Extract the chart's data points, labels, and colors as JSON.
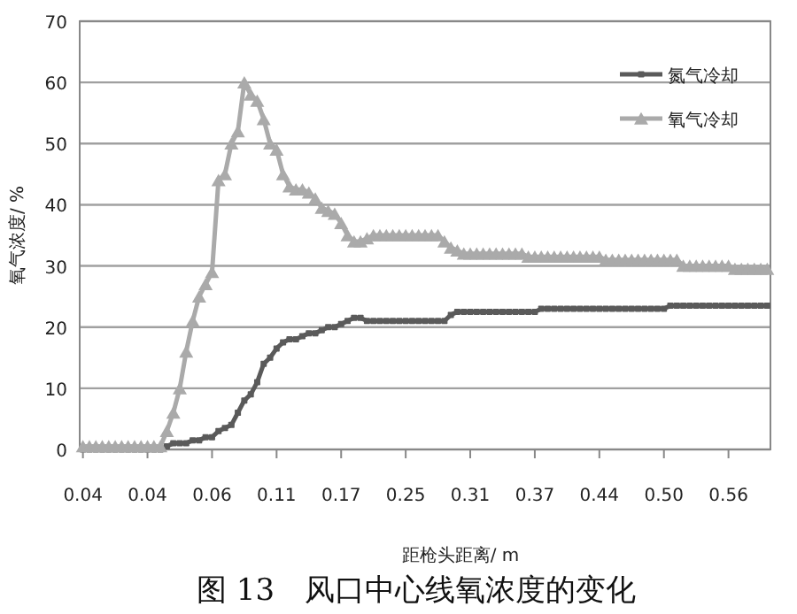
{
  "chart_data": {
    "type": "line",
    "title": "图 13　风口中心线氧浓度的变化",
    "xlabel": "距枪头距离/ m",
    "ylabel": "氧气浓度/ %",
    "categories": [
      "0.04",
      null,
      null,
      null,
      null,
      null,
      null,
      null,
      null,
      null,
      "0.04",
      null,
      null,
      null,
      null,
      null,
      null,
      null,
      null,
      null,
      "0.06",
      null,
      null,
      null,
      null,
      null,
      null,
      null,
      null,
      null,
      "0.11",
      null,
      null,
      null,
      null,
      null,
      null,
      null,
      null,
      null,
      "0.17",
      null,
      null,
      null,
      null,
      null,
      null,
      null,
      null,
      null,
      "0.25",
      null,
      null,
      null,
      null,
      null,
      null,
      null,
      null,
      null,
      "0.31",
      null,
      null,
      null,
      null,
      null,
      null,
      null,
      null,
      null,
      "0.37",
      null,
      null,
      null,
      null,
      null,
      null,
      null,
      null,
      null,
      "0.44",
      null,
      null,
      null,
      null,
      null,
      null,
      null,
      null,
      null,
      "0.50",
      null,
      null,
      null,
      null,
      null,
      null,
      null,
      null,
      null,
      "0.56",
      null,
      null,
      null,
      null,
      null,
      null
    ],
    "series": [
      {
        "name": "氮气冷却",
        "color": "#5a5a5a",
        "marker": "square",
        "values": [
          0,
          0,
          0,
          0,
          0,
          0,
          0,
          0,
          0,
          0,
          0,
          0,
          0,
          0.5,
          1,
          1,
          1,
          1.5,
          1.5,
          2,
          2,
          3,
          3.5,
          4,
          6,
          8,
          9,
          11,
          14,
          15,
          16.5,
          17.5,
          18,
          18,
          18.5,
          19,
          19,
          19.5,
          20,
          20,
          20.5,
          21,
          21.5,
          21.5,
          21,
          21,
          21,
          21,
          21,
          21,
          21,
          21,
          21,
          21,
          21,
          21,
          21,
          22,
          22.5,
          22.5,
          22.5,
          22.5,
          22.5,
          22.5,
          22.5,
          22.5,
          22.5,
          22.5,
          22.5,
          22.5,
          22.5,
          23,
          23,
          23,
          23,
          23,
          23,
          23,
          23,
          23,
          23,
          23,
          23,
          23,
          23,
          23,
          23,
          23,
          23,
          23,
          23,
          23.5,
          23.5,
          23.5,
          23.5,
          23.5,
          23.5,
          23.5,
          23.5,
          23.5,
          23.5,
          23.5,
          23.5,
          23.5,
          23.5,
          23.5,
          23.5
        ]
      },
      {
        "name": "氧气冷却",
        "color": "#aaaaaa",
        "marker": "triangle",
        "values": [
          0.5,
          0.5,
          0.5,
          0.5,
          0.5,
          0.5,
          0.5,
          0.5,
          0.5,
          0.5,
          0.5,
          0.5,
          0.5,
          3,
          6,
          10,
          16,
          21,
          25,
          27,
          29,
          44,
          45,
          50,
          52,
          60,
          58,
          57,
          54,
          50,
          49,
          45,
          43,
          42.5,
          42.5,
          42,
          41,
          39.5,
          39,
          38.5,
          37,
          35,
          34,
          34,
          34.5,
          35,
          35,
          35,
          35,
          35,
          35,
          35,
          35,
          35,
          35,
          35,
          34,
          33,
          32.5,
          32,
          32,
          32,
          32,
          32,
          32,
          32,
          32,
          32,
          32,
          31.5,
          31.5,
          31.5,
          31.5,
          31.5,
          31.5,
          31.5,
          31.5,
          31.5,
          31.5,
          31.5,
          31.5,
          31,
          31,
          31,
          31,
          31,
          31,
          31,
          31,
          31,
          31,
          31,
          31,
          30,
          30,
          30,
          30,
          30,
          30,
          30,
          30,
          29.5,
          29.5,
          29.5,
          29.5,
          29.5,
          29.5
        ]
      }
    ],
    "ylim": [
      0,
      70
    ],
    "yticks": [
      0,
      10,
      20,
      30,
      40,
      50,
      60,
      70
    ],
    "grid": "y",
    "legend": "top right"
  }
}
